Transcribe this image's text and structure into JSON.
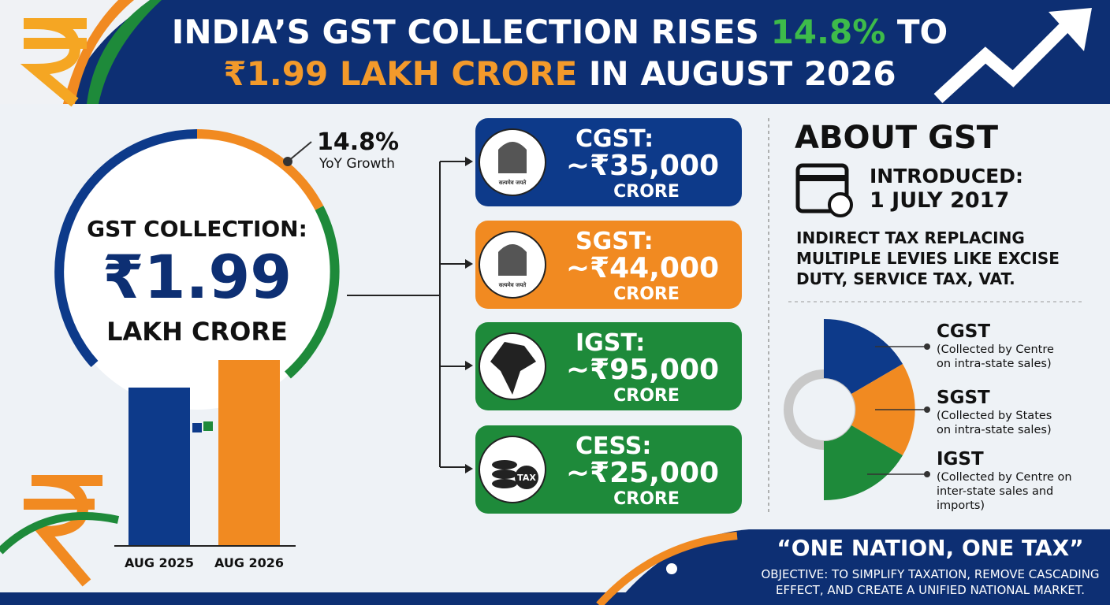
{
  "header": {
    "title_line1": [
      "INDIA’S GST COLLECTION RISES ",
      "14.8%",
      " TO"
    ],
    "title_line2": [
      "₹1.99 LAKH CRORE",
      " IN AUGUST 2026"
    ]
  },
  "growth": {
    "value": "14.8%",
    "label": "YoY Growth"
  },
  "collection": {
    "label": "GST COLLECTION:",
    "amount": "₹1.99",
    "unit": "LAKH CRORE",
    "bars": [
      "AUG 2025",
      "AUG 2026"
    ]
  },
  "cards": [
    {
      "name": "CGST:",
      "amount": "~₹35,000",
      "unit": "CRORE",
      "emblem": "सत्यमेव जयते"
    },
    {
      "name": "SGST:",
      "amount": "~₹44,000",
      "unit": "CRORE",
      "emblem": "सत्यमेव जयते"
    },
    {
      "name": "IGST:",
      "amount": "~₹95,000",
      "unit": "CRORE"
    },
    {
      "name": "CESS:",
      "amount": "~₹25,000",
      "unit": "CRORE",
      "icon": "TAX"
    }
  ],
  "about": {
    "title": "ABOUT GST",
    "introduced_label": "INTRODUCED:",
    "introduced_date": "1 JULY 2017",
    "description": [
      "INDIRECT TAX REPLACING",
      "MULTIPLE LEVIES LIKE EXCISE",
      "DUTY, SERVICE TAX, VAT."
    ],
    "legend": [
      {
        "name": "CGST",
        "note": [
          "(Collected by Centre",
          "on intra-state sales)"
        ]
      },
      {
        "name": "SGST",
        "note": [
          "(Collected by States",
          "on intra-state sales)"
        ]
      },
      {
        "name": "IGST",
        "note": [
          "(Collected by Centre on",
          "inter-state sales and",
          "imports)"
        ]
      }
    ]
  },
  "footer": {
    "motto": "“ONE NATION, ONE TAX”",
    "objective": [
      "OBJECTIVE: TO SIMPLIFY TAXATION, REMOVE CASCADING",
      "EFFECT, AND CREATE A UNIFIED NATIONAL MARKET."
    ]
  }
}
